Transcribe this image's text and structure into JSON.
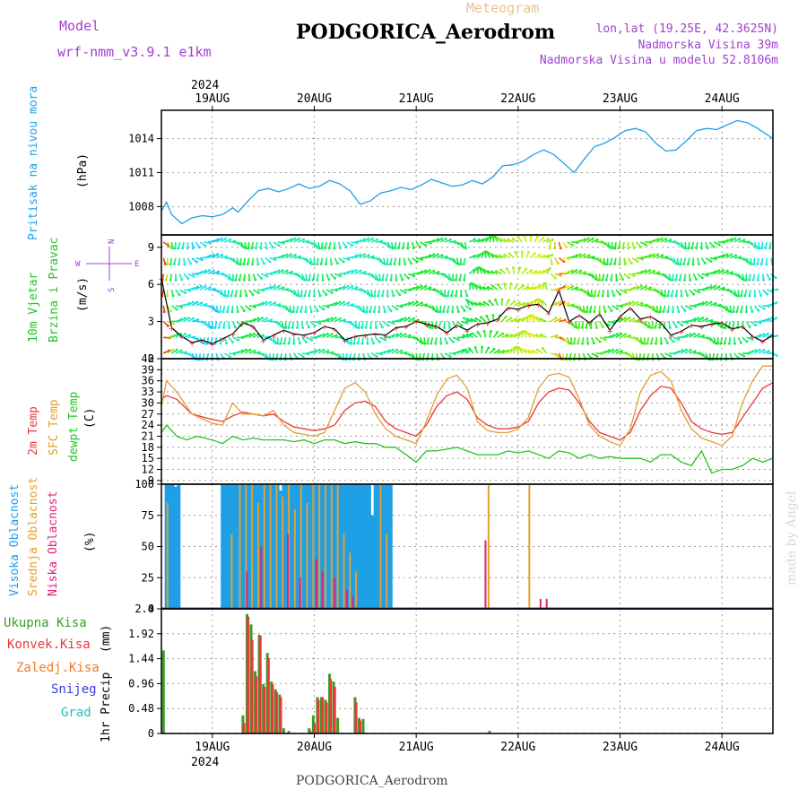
{
  "header": {
    "model_label": "Model",
    "model_name": "wrf-nmm_v3.9.1 e1km",
    "product": "Meteogram",
    "station": "PODGORICA_Aerodrom",
    "lonlat": "lon,lat (19.25E, 42.3625N)",
    "elevation": "Nadmorska Visina 39m",
    "model_elevation": "Nadmorska Visina u modelu 52.8106m",
    "watermark": "made by Angel",
    "footer": "PODGORICA_Aerodrom"
  },
  "colors": {
    "pressure": "#1fa0e6",
    "t2m": "#e8393b",
    "sfc": "#e0a030",
    "dewpt": "#22c422",
    "high_cloud": "#1fa0e6",
    "mid_cloud": "#e0a030",
    "low_cloud": "#e0207a",
    "precip_total": "#3c9c28",
    "precip_conv": "#e8393b",
    "precip_frozen": "#f07828",
    "snow": "#3a3ae0",
    "hail": "#20c0c0",
    "model_purple": "#a040d0"
  },
  "chart_data": [
    {
      "type": "line",
      "panel": "pressure",
      "ylabel_main": "Pritisak na nivou mora",
      "ylabel_unit": "(hPa)",
      "ylim": [
        1005.5,
        1016.5
      ],
      "yticks": [
        "1008",
        "1011",
        "1014"
      ],
      "x_start_label": "2024",
      "x_dates": [
        "19AUG",
        "20AUG",
        "21AUG",
        "22AUG",
        "23AUG",
        "24AUG"
      ],
      "x_range_days": [
        -0.5,
        5.5
      ],
      "grid": true,
      "series": [
        {
          "name": "",
          "x": [
            -0.5,
            -0.45,
            -0.4,
            -0.3,
            -0.2,
            -0.1,
            0,
            0.1,
            0.2,
            0.25,
            0.35,
            0.45,
            0.55,
            0.65,
            0.75,
            0.85,
            0.95,
            1.05,
            1.15,
            1.25,
            1.35,
            1.45,
            1.55,
            1.65,
            1.75,
            1.85,
            1.95,
            2.05,
            2.15,
            2.25,
            2.35,
            2.45,
            2.55,
            2.65,
            2.75,
            2.85,
            2.95,
            3.05,
            3.15,
            3.25,
            3.35,
            3.45,
            3.55,
            3.65,
            3.75,
            3.85,
            3.95,
            4.05,
            4.15,
            4.25,
            4.35,
            4.45,
            4.55,
            4.65,
            4.75,
            4.85,
            4.95,
            5.05,
            5.15,
            5.25,
            5.35,
            5.5
          ],
          "values": [
            1007.6,
            1008.4,
            1007.3,
            1006.5,
            1007.0,
            1007.2,
            1007.1,
            1007.3,
            1007.9,
            1007.5,
            1008.5,
            1009.4,
            1009.6,
            1009.3,
            1009.6,
            1010.0,
            1009.6,
            1009.8,
            1010.3,
            1010.0,
            1009.4,
            1008.2,
            1008.5,
            1009.2,
            1009.4,
            1009.7,
            1009.5,
            1009.9,
            1010.4,
            1010.1,
            1009.8,
            1009.9,
            1010.3,
            1010.0,
            1010.6,
            1011.6,
            1011.7,
            1012.0,
            1012.6,
            1013.0,
            1012.6,
            1011.8,
            1011.0,
            1012.2,
            1013.3,
            1013.6,
            1014.1,
            1014.7,
            1014.9,
            1014.6,
            1013.6,
            1012.9,
            1013.0,
            1013.8,
            1014.7,
            1014.9,
            1014.8,
            1015.2,
            1015.6,
            1015.4,
            1014.9,
            1014.0
          ]
        }
      ]
    },
    {
      "type": "line",
      "panel": "wind",
      "ylabel_main": "10m Vjetar",
      "ylabel_sub": "Brzina i Pravac",
      "ylabel_unit": "(m/s)",
      "compass_letters": [
        "N",
        "W",
        "E",
        "S"
      ],
      "ylim": [
        0,
        10
      ],
      "yticks": [
        "0",
        "3",
        "6",
        "9"
      ],
      "grid": true,
      "series": [
        {
          "name": "",
          "x": [
            -0.5,
            -0.4,
            -0.3,
            -0.2,
            -0.1,
            0,
            0.1,
            0.2,
            0.3,
            0.4,
            0.5,
            0.6,
            0.7,
            0.8,
            0.9,
            1.0,
            1.1,
            1.2,
            1.3,
            1.4,
            1.5,
            1.6,
            1.7,
            1.8,
            1.9,
            2.0,
            2.1,
            2.2,
            2.3,
            2.4,
            2.5,
            2.6,
            2.7,
            2.8,
            2.9,
            3.0,
            3.1,
            3.2,
            3.3,
            3.4,
            3.5,
            3.6,
            3.7,
            3.8,
            3.9,
            4.0,
            4.1,
            4.2,
            4.3,
            4.4,
            4.5,
            4.6,
            4.7,
            4.8,
            4.9,
            5.0,
            5.1,
            5.2,
            5.3,
            5.4,
            5.5
          ],
          "values": [
            6.5,
            2.5,
            1.8,
            1.3,
            1.5,
            1.2,
            1.6,
            2.0,
            2.9,
            2.6,
            1.5,
            1.9,
            2.3,
            2.0,
            1.9,
            2.1,
            2.6,
            2.4,
            1.5,
            1.8,
            1.9,
            2.0,
            1.9,
            2.5,
            2.6,
            3.0,
            2.8,
            2.6,
            2.1,
            2.7,
            2.3,
            2.8,
            2.9,
            3.2,
            4.1,
            4.0,
            4.3,
            4.4,
            3.7,
            5.5,
            3.0,
            3.5,
            2.9,
            3.6,
            2.3,
            3.4,
            4.1,
            3.2,
            3.4,
            2.9,
            1.9,
            2.2,
            2.7,
            2.6,
            2.8,
            2.9,
            2.4,
            2.6,
            1.8,
            1.4,
            1.9
          ]
        }
      ]
    },
    {
      "type": "line",
      "panel": "temperature",
      "ylabel_main": "2m Temp",
      "ylabel_sub1": "SFC Temp",
      "ylabel_sub2": "dewpt Temp",
      "ylabel_unit": "(C)",
      "ylim": [
        8,
        42
      ],
      "yticks": [
        "9",
        "12",
        "15",
        "18",
        "21",
        "24",
        "27",
        "30",
        "33",
        "36",
        "39",
        "42"
      ],
      "grid": true,
      "series": [
        {
          "name": "",
          "x": [
            -0.5,
            -0.45,
            -0.35,
            -0.2,
            0,
            0.1,
            0.2,
            0.3,
            0.4,
            0.5,
            0.6,
            0.7,
            0.8,
            0.9,
            1.0,
            1.1,
            1.2,
            1.3,
            1.4,
            1.5,
            1.6,
            1.7,
            1.8,
            1.9,
            2.0,
            2.1,
            2.2,
            2.3,
            2.4,
            2.5,
            2.6,
            2.7,
            2.8,
            2.9,
            3.0,
            3.1,
            3.2,
            3.3,
            3.4,
            3.5,
            3.6,
            3.7,
            3.8,
            3.9,
            4.0,
            4.1,
            4.2,
            4.3,
            4.4,
            4.5,
            4.6,
            4.7,
            4.8,
            4.9,
            5.0,
            5.1,
            5.2,
            5.3,
            5.4,
            5.5
          ],
          "values": [
            31,
            32,
            31,
            27,
            25.5,
            25,
            26.5,
            27.5,
            27,
            26.5,
            27,
            25,
            23.5,
            23,
            22.5,
            23,
            24,
            28,
            30,
            30.5,
            29,
            25,
            23,
            22,
            21,
            24,
            29,
            32,
            33,
            31,
            26,
            24,
            23,
            23,
            23.5,
            25,
            30,
            33,
            34,
            33.5,
            30,
            25,
            22,
            21,
            20,
            22,
            28,
            32,
            34.5,
            34,
            30,
            25,
            23,
            22,
            21.5,
            22,
            26,
            30,
            34,
            35.5
          ]
        },
        {
          "name": "",
          "x": [
            -0.5,
            -0.45,
            -0.35,
            -0.2,
            0,
            0.1,
            0.2,
            0.3,
            0.4,
            0.5,
            0.6,
            0.7,
            0.8,
            0.9,
            1.0,
            1.1,
            1.2,
            1.3,
            1.4,
            1.5,
            1.6,
            1.7,
            1.8,
            1.9,
            2.0,
            2.1,
            2.2,
            2.3,
            2.4,
            2.5,
            2.6,
            2.7,
            2.8,
            2.9,
            3.0,
            3.1,
            3.2,
            3.3,
            3.4,
            3.5,
            3.6,
            3.7,
            3.8,
            3.9,
            4.0,
            4.1,
            4.2,
            4.3,
            4.4,
            4.5,
            4.6,
            4.7,
            4.8,
            4.9,
            5.0,
            5.1,
            5.2,
            5.3,
            5.4,
            5.5
          ],
          "values": [
            29,
            36,
            33,
            27,
            24.5,
            24,
            30,
            27,
            27,
            26.5,
            28,
            24,
            22,
            21.5,
            21,
            22,
            28,
            34,
            35.5,
            33,
            27,
            23,
            21,
            20,
            19,
            25,
            32,
            36.5,
            37.5,
            34,
            25,
            22.5,
            22,
            22,
            23,
            26,
            34,
            37.5,
            38,
            37,
            31,
            24,
            21,
            19.5,
            18.5,
            23,
            33,
            37.5,
            38.5,
            36,
            28,
            23,
            20.5,
            19.5,
            18.5,
            21,
            30,
            36,
            40,
            40
          ]
        },
        {
          "name": "",
          "x": [
            -0.5,
            -0.45,
            -0.35,
            -0.25,
            -0.15,
            0,
            0.1,
            0.2,
            0.3,
            0.4,
            0.5,
            0.6,
            0.7,
            0.8,
            0.9,
            1.0,
            1.1,
            1.2,
            1.3,
            1.4,
            1.5,
            1.6,
            1.7,
            1.8,
            1.9,
            2.0,
            2.1,
            2.2,
            2.3,
            2.4,
            2.5,
            2.6,
            2.7,
            2.8,
            2.9,
            3.0,
            3.1,
            3.2,
            3.3,
            3.4,
            3.5,
            3.6,
            3.7,
            3.8,
            3.9,
            4.0,
            4.1,
            4.2,
            4.3,
            4.4,
            4.5,
            4.6,
            4.7,
            4.8,
            4.9,
            5.0,
            5.1,
            5.2,
            5.3,
            5.4,
            5.5
          ],
          "values": [
            22,
            24,
            21,
            20,
            21,
            20,
            19,
            21,
            20,
            20.5,
            20,
            20,
            20,
            19.5,
            20,
            19,
            20,
            20,
            19,
            19.5,
            19,
            19,
            18,
            18,
            16,
            14,
            17,
            17,
            17.5,
            18,
            17,
            16,
            16,
            16,
            17,
            16.5,
            17,
            16,
            15,
            17,
            16.5,
            15,
            16,
            15,
            15.5,
            15,
            15,
            15,
            14,
            16,
            16,
            14,
            13,
            17,
            11,
            12,
            12,
            13,
            15,
            14,
            15
          ]
        }
      ]
    },
    {
      "type": "bar",
      "panel": "cloud",
      "ylabel_main": "Visoka Oblacnost",
      "ylabel_sub1": "Srednja Oblacnost",
      "ylabel_sub2": "Niska Oblacnost",
      "ylabel_unit": "(%)",
      "ylim": [
        0,
        100
      ],
      "yticks": [
        "0",
        "25",
        "50",
        "75",
        "100"
      ],
      "grid": true,
      "series": [
        {
          "name": "",
          "x": [
            -0.45,
            -0.42,
            -0.39,
            -0.36,
            -0.33,
            0.1,
            0.13,
            0.16,
            0.19,
            0.22,
            0.25,
            0.28,
            0.31,
            0.34,
            0.37,
            0.4,
            0.43,
            0.46,
            0.49,
            0.52,
            0.55,
            0.58,
            0.61,
            0.64,
            0.67,
            0.7,
            0.73,
            0.76,
            0.79,
            0.82,
            0.85,
            0.88,
            0.91,
            0.94,
            0.97,
            1.0,
            1.03,
            1.06,
            1.09,
            1.12,
            1.15,
            1.18,
            1.21,
            1.24,
            1.27,
            1.3,
            1.33,
            1.36,
            1.39,
            1.42,
            1.45,
            1.48,
            1.51,
            1.54,
            1.57,
            1.6,
            1.63,
            1.66,
            1.69,
            1.72,
            1.75
          ],
          "values": [
            100,
            100,
            100,
            98,
            100,
            100,
            100,
            100,
            100,
            100,
            100,
            100,
            100,
            100,
            100,
            100,
            100,
            100,
            100,
            100,
            100,
            100,
            100,
            100,
            95,
            100,
            100,
            100,
            100,
            100,
            100,
            100,
            100,
            100,
            100,
            100,
            100,
            100,
            100,
            100,
            100,
            100,
            100,
            100,
            100,
            100,
            100,
            100,
            100,
            100,
            100,
            100,
            100,
            100,
            75,
            100,
            100,
            100,
            100,
            100,
            100
          ]
        },
        {
          "name": "",
          "x": [
            -0.44,
            0.19,
            0.27,
            0.33,
            0.39,
            0.45,
            0.51,
            0.57,
            0.63,
            0.69,
            0.75,
            0.81,
            0.87,
            0.93,
            0.99,
            1.05,
            1.11,
            1.17,
            1.23,
            1.29,
            1.35,
            1.41,
            1.65,
            1.71,
            2.71,
            3.11
          ],
          "values": [
            85,
            60,
            100,
            100,
            100,
            85,
            100,
            100,
            100,
            90,
            100,
            80,
            100,
            85,
            100,
            100,
            100,
            100,
            100,
            60,
            45,
            30,
            100,
            60,
            100,
            100
          ]
        },
        {
          "name": "",
          "x": [
            0.34,
            0.48,
            0.74,
            0.86,
            1.02,
            1.08,
            1.2,
            1.32,
            1.38,
            2.68,
            3.22,
            3.28
          ],
          "values": [
            30,
            50,
            60,
            25,
            40,
            30,
            25,
            15,
            10,
            55,
            8,
            8
          ]
        }
      ]
    },
    {
      "type": "bar",
      "panel": "precip",
      "ylabel_main": "1hr Precip",
      "ylabel_unit": "(mm)",
      "legend_left": [
        "Ukupna Kisa",
        "Konvek.Kisa",
        "Zaledj.Kisa",
        "Snijeg",
        "Grad"
      ],
      "ylim": [
        0,
        2.4
      ],
      "yticks": [
        "0",
        "0.48",
        "0.96",
        "1.44",
        "1.92",
        "2.4"
      ],
      "x_dates": [
        "19AUG",
        "20AUG",
        "21AUG",
        "22AUG",
        "23AUG",
        "24AUG"
      ],
      "x_end_label": "2024",
      "grid": true,
      "series": [
        {
          "name": "",
          "x": [
            -0.48,
            0.3,
            0.34,
            0.38,
            0.42,
            0.46,
            0.5,
            0.54,
            0.58,
            0.62,
            0.66,
            0.7,
            0.75,
            0.95,
            0.99,
            1.03,
            1.07,
            1.11,
            1.15,
            1.19,
            1.23,
            1.4,
            1.44,
            1.48,
            2.72
          ],
          "values": [
            1.6,
            0.35,
            2.3,
            2.1,
            1.2,
            1.9,
            0.95,
            1.55,
            1.0,
            0.85,
            0.75,
            0.1,
            0.05,
            0.1,
            0.35,
            0.7,
            0.7,
            0.65,
            1.15,
            1.0,
            0.3,
            0.7,
            0.3,
            0.28,
            0.05
          ]
        },
        {
          "name": "",
          "x": [
            0.31,
            0.35,
            0.39,
            0.43,
            0.47,
            0.51,
            0.55,
            0.59,
            0.63,
            0.67,
            0.96,
            1.0,
            1.04,
            1.08,
            1.12,
            1.16,
            1.2,
            1.41,
            1.45
          ],
          "values": [
            0.2,
            2.25,
            1.8,
            1.1,
            1.88,
            0.9,
            1.45,
            0.95,
            0.8,
            0.7,
            0.05,
            0.2,
            0.65,
            0.7,
            0.6,
            1.05,
            0.9,
            0.6,
            0.25
          ]
        }
      ]
    }
  ]
}
